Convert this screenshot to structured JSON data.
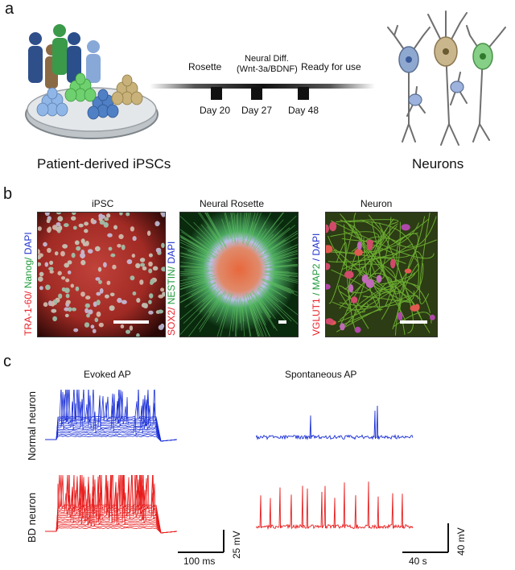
{
  "panel_a": {
    "letter": "a",
    "left_caption": "Patient-derived iPSCs",
    "right_caption": "Neurons",
    "stage_rosette": "Rosette",
    "stage_diff_line1": "Neural Diff.",
    "stage_diff_line2": "(Wnt-3a/BDNF)",
    "stage_ready": "Ready for use",
    "day1": "Day 20",
    "day2": "Day 27",
    "day3": "Day 48"
  },
  "panel_b": {
    "letter": "b",
    "titles": [
      "iPSC",
      "Neural Rosette",
      "Neuron"
    ],
    "stain1": [
      "TRA-1-60/",
      " Nanog/",
      " DAPI"
    ],
    "stain2": [
      "SOX2/",
      " NESTIN/",
      " DAPI"
    ],
    "stain3": [
      "VGLUT1",
      " / MAP2",
      " / DAPI"
    ],
    "colors": {
      "red": "#e8232a",
      "green": "#1f9a3a",
      "blue": "#2233cc"
    }
  },
  "panel_c": {
    "letter": "c",
    "title_evoked": "Evoked AP",
    "title_spont": "Spontaneous AP",
    "row_normal": "Normal neuron",
    "row_bd": "BD neuron",
    "evoked_x_scale": "100 ms",
    "evoked_y_scale": "25 mV",
    "spont_x_scale": "40 s",
    "spont_y_scale": "40 mV",
    "trace_colors": {
      "normal": "#1a2fd6",
      "bd": "#e81c1c"
    }
  }
}
